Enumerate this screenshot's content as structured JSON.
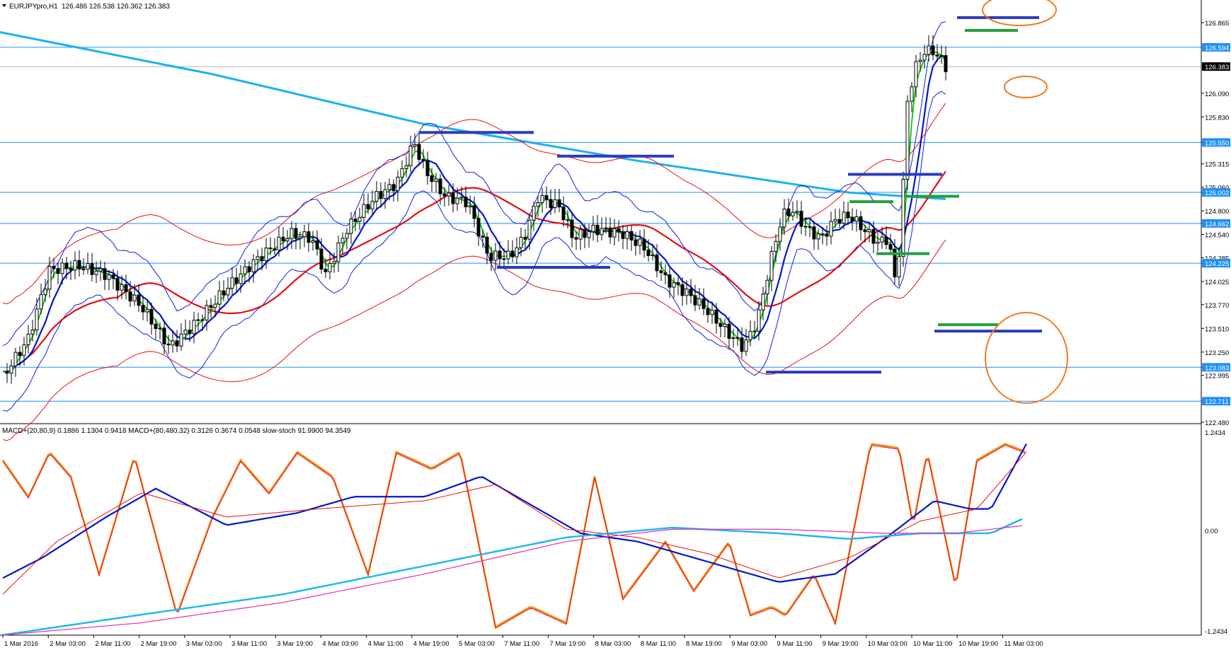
{
  "main_header": {
    "symbol": "EURJPYpro,H1",
    "ohlc": "126.486 126.538 126.362 126.383"
  },
  "sub_header": {
    "text": "MACD+(20,80,9) 0.1886 1.1304 0.9418   MACD+(80,480,32) 0.3126 0.3674 0.0548   slow-stoch 91.9900 94.3549"
  },
  "price_scale": {
    "ticks": [
      126.865,
      126.594,
      126.383,
      126.09,
      125.83,
      125.55,
      125.315,
      125.06,
      125.002,
      124.8,
      124.662,
      124.54,
      124.285,
      124.225,
      124.025,
      123.77,
      123.51,
      123.25,
      123.083,
      122.995,
      122.711,
      122.48
    ],
    "tick_labels": [
      "126.865",
      "126.594",
      "126.383",
      "126.090",
      "125.830",
      "125.550",
      "125.315",
      "125.060",
      "125.002",
      "124.800",
      "124.662",
      "124.540",
      "124.285",
      "124.225",
      "124.025",
      "123.770",
      "123.510",
      "123.250",
      "123.083",
      "122.995",
      "122.711",
      "122.480"
    ],
    "tagged_levels": [
      "126.594",
      "126.383",
      "125.550",
      "125.002",
      "124.662",
      "124.225",
      "123.083",
      "122.711"
    ],
    "current_price": "126.383"
  },
  "indicator_scale": {
    "top": "1.2434",
    "mid": "0.00",
    "bottom": "-1.2434"
  },
  "time_axis": {
    "labels": [
      "1 Mar 2016",
      "2 Mar 03:00",
      "2 Mar 11:00",
      "2 Mar 19:00",
      "3 Mar 03:00",
      "3 Mar 11:00",
      "3 Mar 19:00",
      "4 Mar 03:00",
      "4 Mar 11:00",
      "4 Mar 19:00",
      "5 Mar 03:00",
      "7 Mar 11:00",
      "7 Mar 19:00",
      "8 Mar 03:00",
      "8 Mar 11:00",
      "8 Mar 19:00",
      "9 Mar 03:00",
      "9 Mar 11:00",
      "9 Mar 19:00",
      "10 Mar 03:00",
      "10 Mar 11:00",
      "10 Mar 19:00",
      "11 Mar 03:00"
    ]
  },
  "colors": {
    "background": "#ffffff",
    "grid_line": "#1e90ff",
    "sma_long": "#1ab2f0",
    "ma_red": "#e01010",
    "ma_green": "#00d000",
    "ma_blue": "#0018c8",
    "bollinger": "#1020e0",
    "envelope": "#e81010",
    "support_bar": "#2a3bbd",
    "resist_bar": "#22a040",
    "circle": "#f07a20",
    "stoch": "#f08a18",
    "macd_cyan": "#20b8f0",
    "macd_magenta": "#e030b0",
    "tag_bg": "#1e90ff",
    "tag_current": "#000000"
  }
}
